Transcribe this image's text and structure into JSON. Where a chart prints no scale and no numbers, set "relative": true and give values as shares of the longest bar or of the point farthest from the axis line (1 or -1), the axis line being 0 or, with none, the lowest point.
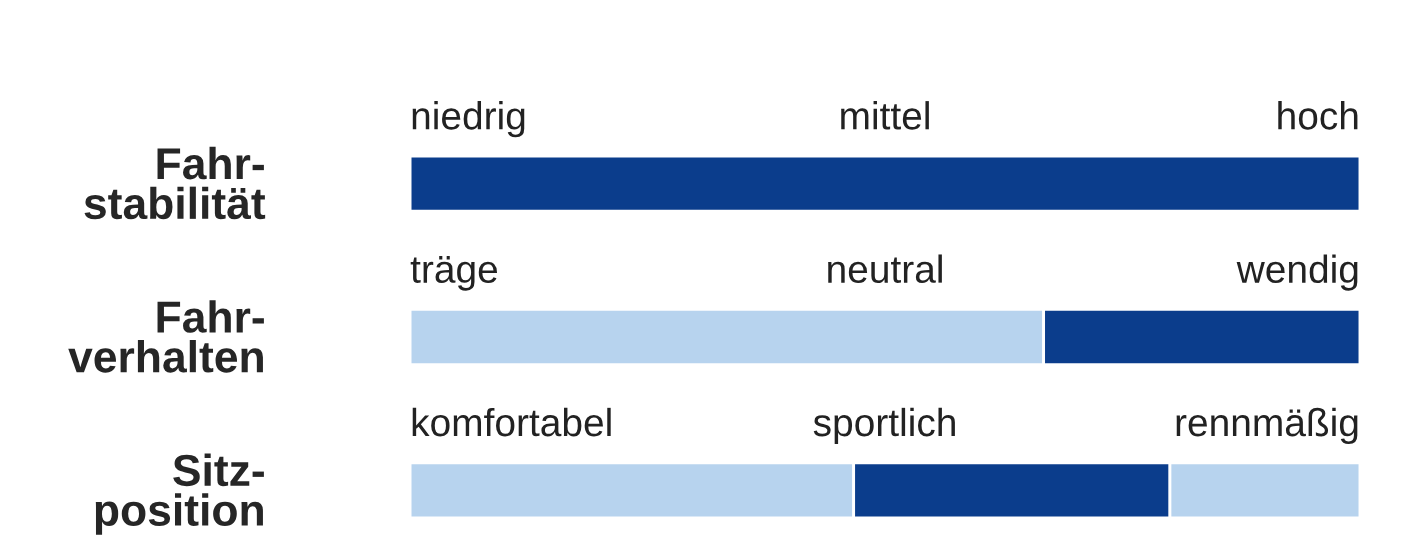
{
  "chart_data": {
    "type": "bar",
    "orientation": "horizontal",
    "stacked": true,
    "relative": true,
    "categories": [
      "Fahr-\nstabilität",
      "Fahr-\nverhalten",
      "Sitz-\nposition"
    ],
    "series": [
      {
        "color": "#b7d3ee",
        "values": [
          0,
          0.667,
          0.467
        ]
      },
      {
        "color": "#0b3d8c",
        "values": [
          1,
          0.333,
          0.333
        ]
      },
      {
        "color": "#b7d3ee",
        "values": [
          0,
          0,
          0.2
        ]
      }
    ],
    "annotations": [
      "niedrig",
      "mittel",
      "hoch",
      "träge",
      "neutral",
      "wendig",
      "komfortabel",
      "sportlich",
      "rennmäßig"
    ],
    "legend": false
  }
}
